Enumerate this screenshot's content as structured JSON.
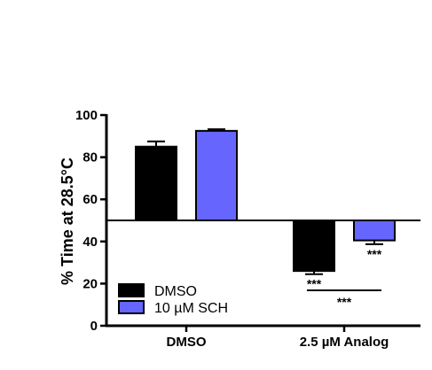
{
  "chart_data": {
    "type": "bar",
    "title": "",
    "xlabel": "",
    "ylabel": "% Time at 28.5°C",
    "ylim": [
      0,
      100
    ],
    "yticks": [
      0,
      20,
      40,
      60,
      80,
      100
    ],
    "baseline": 50,
    "grid": false,
    "legend_position": "bottom-left",
    "categories": [
      "DMSO",
      "2.5 µM Analog"
    ],
    "series": [
      {
        "name": "DMSO",
        "color": "#000000",
        "values": [
          85,
          26
        ],
        "errors": [
          2.5,
          1.5
        ]
      },
      {
        "name": "10 µM SCH",
        "color": "#6666ff",
        "values": [
          92.5,
          40.5
        ],
        "errors": [
          0.8,
          1.8
        ]
      }
    ],
    "annotations": [
      {
        "text": "***",
        "category_index": 1,
        "series_index": 0
      },
      {
        "text": "***",
        "category_index": 1,
        "series_index": 1
      },
      {
        "text": "***",
        "category_index": 1,
        "between_series": [
          0,
          1
        ]
      }
    ]
  }
}
